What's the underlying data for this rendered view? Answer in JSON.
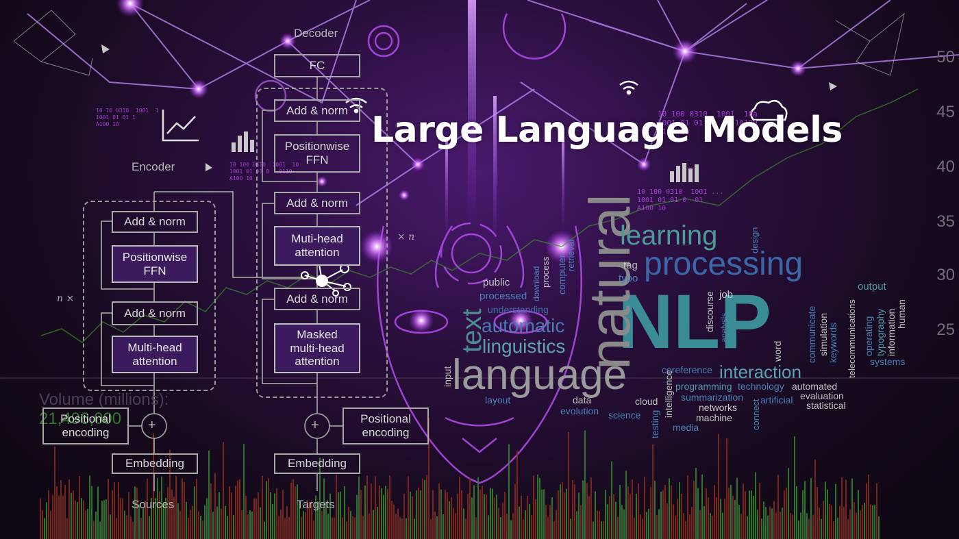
{
  "title": "Large Language Models",
  "diagram": {
    "decoder_label": "Decoder",
    "encoder_label": "Encoder",
    "fc": "FC",
    "dec_add_norm_top": "Add & norm",
    "dec_ffn": "Positionwise\nFFN",
    "dec_add_norm_mid": "Add & norm",
    "dec_mha": "Muti-head\nattention",
    "dec_add_norm_low": "Add & norm",
    "dec_masked": "Masked\nmulti-head\nattention",
    "enc_add_norm_top": "Add & norm",
    "enc_ffn": "Positionwise\nFFN",
    "enc_add_norm_low": "Add & norm",
    "enc_mha": "Multi-head\nattention",
    "enc_pos": "Positional\nencoding",
    "dec_pos": "Positional\nencoding",
    "enc_embed": "Embedding",
    "dec_embed": "Embedding",
    "sources": "Sources",
    "targets": "Targets",
    "n_times_left": "n ×",
    "n_times_right": "× n",
    "plus": "+"
  },
  "chart_overlay": {
    "volume_label": "Volume (millions):",
    "volume_value": "21,496,000",
    "axis_ticks": [
      "50",
      "45",
      "40",
      "35",
      "30",
      "25"
    ]
  },
  "binary_text": {
    "a": "10 10 0310  1001  1\n1001 01 01 1\nA100 10",
    "b": "10 100 0310  1001  10\n1001 01 01 0   0110\nA100 10",
    "c": "10 100 0310  1001  10a\n1001 01 01 0   0110100\nA100 10",
    "d": "10 100 0310  1001 ...\n1001 01 01 0  01\nA100 10"
  },
  "word_cloud": [
    {
      "key": "nlp",
      "text": "NLP",
      "color": "#3a8d96"
    },
    {
      "key": "natural",
      "text": "natural",
      "color": "#8a8a8a"
    },
    {
      "key": "language",
      "text": "language",
      "color": "#9a9a9a"
    },
    {
      "key": "processing",
      "text": "processing",
      "color": "#3b66a8"
    },
    {
      "key": "learning",
      "text": "learning",
      "color": "#4c9a96"
    },
    {
      "key": "linguistics",
      "text": "linguistics",
      "color": "#5aa3a8"
    },
    {
      "key": "automatic",
      "text": "automatic",
      "color": "#4a7ab0"
    },
    {
      "key": "text",
      "text": "text",
      "color": "#4c8c94"
    },
    {
      "key": "interaction",
      "text": "interaction",
      "color": "#5fa0b0"
    },
    {
      "key": "understanding",
      "text": "understanding",
      "color": "#3a6fa8"
    },
    {
      "key": "public",
      "text": "public",
      "color": "#c8c8c8"
    },
    {
      "key": "processed",
      "text": "processed",
      "color": "#4a80b8"
    },
    {
      "key": "download",
      "text": "download",
      "color": "#4a80b8"
    },
    {
      "key": "process",
      "text": "process",
      "color": "#c0c0c0"
    },
    {
      "key": "computer",
      "text": "computer",
      "color": "#4a80b8"
    },
    {
      "key": "retrieval",
      "text": "retrieval",
      "color": "#4a80b8"
    },
    {
      "key": "tag",
      "text": "tag",
      "color": "#c0c0c0"
    },
    {
      "key": "typo",
      "text": "typo",
      "color": "#4a80b8"
    },
    {
      "key": "design",
      "text": "design",
      "color": "#4a80b8"
    },
    {
      "key": "output",
      "text": "output",
      "color": "#4a9aa8"
    },
    {
      "key": "job",
      "text": "job",
      "color": "#c8c8c8"
    },
    {
      "key": "discourse",
      "text": "discourse",
      "color": "#c0c0c0"
    },
    {
      "key": "analysis",
      "text": "analysis",
      "color": "#4a80b8"
    },
    {
      "key": "word",
      "text": "word",
      "color": "#c0c0c0"
    },
    {
      "key": "communicate",
      "text": "communicate",
      "color": "#4a80b8"
    },
    {
      "key": "simulation",
      "text": "simulation",
      "color": "#c0c0c0"
    },
    {
      "key": "keywords",
      "text": "keywords",
      "color": "#4a80b8"
    },
    {
      "key": "telecommunications",
      "text": "telecommunications",
      "color": "#c0c0c0"
    },
    {
      "key": "operating",
      "text": "operating",
      "color": "#4a80b8"
    },
    {
      "key": "typography",
      "text": "typography",
      "color": "#4a9aa8"
    },
    {
      "key": "information",
      "text": "information",
      "color": "#c0c0c0"
    },
    {
      "key": "human",
      "text": "human",
      "color": "#c0c0c0"
    },
    {
      "key": "systems",
      "text": "systems",
      "color": "#4a80b8"
    },
    {
      "key": "input",
      "text": "input",
      "color": "#c0c0c0"
    },
    {
      "key": "layout",
      "text": "layout",
      "color": "#4a80b8"
    },
    {
      "key": "coreference",
      "text": "coreference",
      "color": "#4a80b8"
    },
    {
      "key": "programming",
      "text": "programming",
      "color": "#4a9aa8"
    },
    {
      "key": "technology",
      "text": "technology",
      "color": "#4a80b8"
    },
    {
      "key": "automated",
      "text": "automated",
      "color": "#c0c0c0"
    },
    {
      "key": "summarization",
      "text": "summarization",
      "color": "#4a80b8"
    },
    {
      "key": "artificial",
      "text": "artificial",
      "color": "#4a80b8"
    },
    {
      "key": "evaluation",
      "text": "evaluation",
      "color": "#c0c0c0"
    },
    {
      "key": "statistical",
      "text": "statistical",
      "color": "#c0c0c0"
    },
    {
      "key": "data",
      "text": "data",
      "color": "#c0c0c0"
    },
    {
      "key": "cloud",
      "text": "cloud",
      "color": "#c0c0c0"
    },
    {
      "key": "networks",
      "text": "networks",
      "color": "#c8c8c8"
    },
    {
      "key": "machine",
      "text": "machine",
      "color": "#c8c8c8"
    },
    {
      "key": "evolution",
      "text": "evolution",
      "color": "#4a80b8"
    },
    {
      "key": "science",
      "text": "science",
      "color": "#4a80b8"
    },
    {
      "key": "media",
      "text": "media",
      "color": "#4a80b8"
    },
    {
      "key": "intelligence",
      "text": "intelligence",
      "color": "#c0c0c0"
    },
    {
      "key": "testing",
      "text": "testing",
      "color": "#4a80b8"
    },
    {
      "key": "connect",
      "text": "connect",
      "color": "#4a80b8"
    }
  ],
  "colors": {
    "accent_purple": "#b04cff",
    "box_fill": "#3c1a5e",
    "volume_green": "#2f8a2a",
    "volume_red": "#8a2a1a"
  }
}
